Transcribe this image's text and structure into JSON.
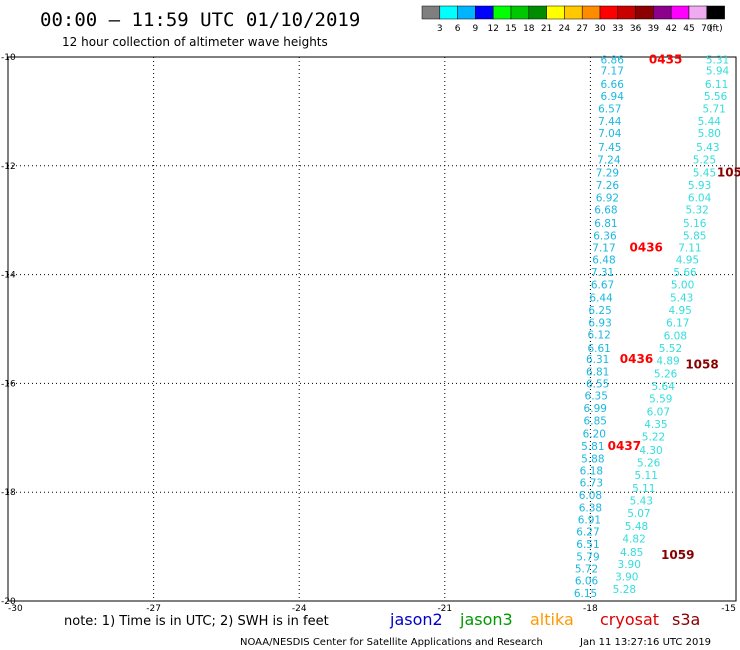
{
  "title": "00:00 – 11:59 UTC 01/10/2019",
  "subtitle": "12 hour collection of altimeter wave heights",
  "note": "note: 1) Time is in UTC; 2) SWH is in feet",
  "credit": "NOAA/NESDIS Center for Satellite Applications and Research",
  "timestamp": "Jan 11 13:27:16 UTC 2019",
  "colorbar": {
    "labels": [
      "3",
      "6",
      "9",
      "12",
      "15",
      "18",
      "21",
      "24",
      "27",
      "30",
      "33",
      "36",
      "39",
      "42",
      "45",
      "70"
    ],
    "colors": [
      "#7f7f7f",
      "#00ffff",
      "#00b4ff",
      "#0000ff",
      "#00ff00",
      "#00c800",
      "#008c00",
      "#ffff00",
      "#ffc800",
      "#ff8c00",
      "#ff0000",
      "#c80000",
      "#8c0000",
      "#8c008c",
      "#ff00ff",
      "#f0aaf0",
      "#000000"
    ],
    "unit": "(ft)"
  },
  "legend": [
    {
      "name": "jason2",
      "color": "#0000cc"
    },
    {
      "name": "jason3",
      "color": "#009900"
    },
    {
      "name": "altika",
      "color": "#ff9900"
    },
    {
      "name": "cryosat",
      "color": "#dd0000"
    },
    {
      "name": "s3a",
      "color": "#880000"
    }
  ],
  "chart_data": {
    "type": "scatter",
    "xlim": [
      -30,
      -15
    ],
    "ylim": [
      -20,
      -10
    ],
    "xticks": [
      -30,
      -27,
      -24,
      -21,
      -18,
      -15
    ],
    "yticks": [
      -10,
      -12,
      -14,
      -16,
      -18,
      -20
    ],
    "xtick_labels": [
      "-30",
      "-27",
      "-24",
      "-21",
      "-18",
      "-15"
    ],
    "ytick_labels": [
      "-10",
      "-12",
      "-14",
      "-16",
      "-18",
      "-20"
    ],
    "grid": true,
    "series": [
      {
        "color": "#1ab8e0",
        "points": [
          {
            "x": -17.55,
            "y": -10.05,
            "label": "6.86"
          },
          {
            "x": -17.55,
            "y": -10.25,
            "label": "7.17"
          },
          {
            "x": -17.55,
            "y": -10.5,
            "label": "6.66"
          },
          {
            "x": -17.55,
            "y": -10.72,
            "label": "6.94"
          },
          {
            "x": -17.6,
            "y": -10.95,
            "label": "6.57"
          },
          {
            "x": -17.6,
            "y": -11.18,
            "label": "7.44"
          },
          {
            "x": -17.6,
            "y": -11.4,
            "label": "7.04"
          },
          {
            "x": -17.6,
            "y": -11.65,
            "label": "7.45"
          },
          {
            "x": -17.62,
            "y": -11.88,
            "label": "7.24"
          },
          {
            "x": -17.65,
            "y": -12.12,
            "label": "7.29"
          },
          {
            "x": -17.65,
            "y": -12.35,
            "label": "7.26"
          },
          {
            "x": -17.65,
            "y": -12.58,
            "label": "6.92"
          },
          {
            "x": -17.68,
            "y": -12.8,
            "label": "6.68"
          },
          {
            "x": -17.68,
            "y": -13.05,
            "label": "6.81"
          },
          {
            "x": -17.7,
            "y": -13.28,
            "label": "6.36"
          },
          {
            "x": -17.72,
            "y": -13.5,
            "label": "7.17"
          },
          {
            "x": -17.72,
            "y": -13.72,
            "label": "6.48"
          },
          {
            "x": -17.75,
            "y": -13.95,
            "label": "7.31"
          },
          {
            "x": -17.75,
            "y": -14.18,
            "label": "6.67"
          },
          {
            "x": -17.78,
            "y": -14.42,
            "label": "6.44"
          },
          {
            "x": -17.8,
            "y": -14.65,
            "label": "6.25"
          },
          {
            "x": -17.8,
            "y": -14.88,
            "label": "6.93"
          },
          {
            "x": -17.82,
            "y": -15.1,
            "label": "6.12"
          },
          {
            "x": -17.82,
            "y": -15.35,
            "label": "6.61"
          },
          {
            "x": -17.85,
            "y": -15.55,
            "label": "6.31"
          },
          {
            "x": -17.85,
            "y": -15.78,
            "label": "6.81"
          },
          {
            "x": -17.85,
            "y": -16.0,
            "label": "6.55"
          },
          {
            "x": -17.88,
            "y": -16.22,
            "label": "6.35"
          },
          {
            "x": -17.9,
            "y": -16.45,
            "label": "6.99"
          },
          {
            "x": -17.9,
            "y": -16.68,
            "label": "6.85"
          },
          {
            "x": -17.92,
            "y": -16.92,
            "label": "6.20"
          },
          {
            "x": -17.95,
            "y": -17.15,
            "label": "5.81"
          },
          {
            "x": -17.95,
            "y": -17.38,
            "label": "5.88"
          },
          {
            "x": -17.98,
            "y": -17.6,
            "label": "6.18"
          },
          {
            "x": -17.98,
            "y": -17.82,
            "label": "6.73"
          },
          {
            "x": -18.0,
            "y": -18.05,
            "label": "6.08"
          },
          {
            "x": -18.0,
            "y": -18.28,
            "label": "6.38"
          },
          {
            "x": -18.02,
            "y": -18.5,
            "label": "6.91"
          },
          {
            "x": -18.05,
            "y": -18.72,
            "label": "6.27"
          },
          {
            "x": -18.05,
            "y": -18.95,
            "label": "6.51"
          },
          {
            "x": -18.05,
            "y": -19.18,
            "label": "5.79"
          },
          {
            "x": -18.08,
            "y": -19.4,
            "label": "5.72"
          },
          {
            "x": -18.08,
            "y": -19.62,
            "label": "6.06"
          },
          {
            "x": -18.1,
            "y": -19.85,
            "label": "6.15"
          }
        ]
      },
      {
        "color": "#33dddd",
        "points": [
          {
            "x": -15.38,
            "y": -10.05,
            "label": "5.31"
          },
          {
            "x": -15.38,
            "y": -10.25,
            "label": "5.94"
          },
          {
            "x": -15.4,
            "y": -10.5,
            "label": "6.11"
          },
          {
            "x": -15.42,
            "y": -10.72,
            "label": "5.56"
          },
          {
            "x": -15.45,
            "y": -10.95,
            "label": "5.71"
          },
          {
            "x": -15.55,
            "y": -11.18,
            "label": "5.44"
          },
          {
            "x": -15.55,
            "y": -11.4,
            "label": "5.80"
          },
          {
            "x": -15.58,
            "y": -11.65,
            "label": "5.43"
          },
          {
            "x": -15.65,
            "y": -11.88,
            "label": "5.25"
          },
          {
            "x": -15.65,
            "y": -12.12,
            "label": "5.45"
          },
          {
            "x": -15.75,
            "y": -12.35,
            "label": "5.93"
          },
          {
            "x": -15.75,
            "y": -12.58,
            "label": "6.04"
          },
          {
            "x": -15.8,
            "y": -12.8,
            "label": "5.32"
          },
          {
            "x": -15.85,
            "y": -13.05,
            "label": "5.16"
          },
          {
            "x": -15.85,
            "y": -13.28,
            "label": "5.85"
          },
          {
            "x": -15.95,
            "y": -13.5,
            "label": "7.11"
          },
          {
            "x": -16.0,
            "y": -13.72,
            "label": "4.95"
          },
          {
            "x": -16.05,
            "y": -13.95,
            "label": "5.66"
          },
          {
            "x": -16.1,
            "y": -14.18,
            "label": "5.00"
          },
          {
            "x": -16.12,
            "y": -14.42,
            "label": "5.43"
          },
          {
            "x": -16.15,
            "y": -14.65,
            "label": "4.95"
          },
          {
            "x": -16.2,
            "y": -14.88,
            "label": "6.17"
          },
          {
            "x": -16.25,
            "y": -15.12,
            "label": "6.08"
          },
          {
            "x": -16.35,
            "y": -15.35,
            "label": "5.52"
          },
          {
            "x": -16.4,
            "y": -15.58,
            "label": "4.89"
          },
          {
            "x": -16.45,
            "y": -15.82,
            "label": "5.26"
          },
          {
            "x": -16.5,
            "y": -16.05,
            "label": "5.64"
          },
          {
            "x": -16.55,
            "y": -16.28,
            "label": "5.59"
          },
          {
            "x": -16.6,
            "y": -16.52,
            "label": "6.07"
          },
          {
            "x": -16.65,
            "y": -16.75,
            "label": "4.35"
          },
          {
            "x": -16.7,
            "y": -16.98,
            "label": "5.22"
          },
          {
            "x": -16.75,
            "y": -17.22,
            "label": "4.30"
          },
          {
            "x": -16.8,
            "y": -17.45,
            "label": "5.26"
          },
          {
            "x": -16.85,
            "y": -17.68,
            "label": "5.11"
          },
          {
            "x": -16.9,
            "y": -17.92,
            "label": "5.11"
          },
          {
            "x": -16.95,
            "y": -18.15,
            "label": "5.43"
          },
          {
            "x": -17.0,
            "y": -18.38,
            "label": "5.07"
          },
          {
            "x": -17.05,
            "y": -18.62,
            "label": "5.48"
          },
          {
            "x": -17.1,
            "y": -18.85,
            "label": "4.82"
          },
          {
            "x": -17.15,
            "y": -19.1,
            "label": "4.85"
          },
          {
            "x": -17.2,
            "y": -19.32,
            "label": "3.90"
          },
          {
            "x": -17.25,
            "y": -19.55,
            "label": "3.90"
          },
          {
            "x": -17.3,
            "y": -19.78,
            "label": "5.28"
          }
        ]
      }
    ],
    "time_labels": [
      {
        "x": -16.45,
        "y": -10.05,
        "label": "0435",
        "color": "#ff0000"
      },
      {
        "x": -16.85,
        "y": -13.5,
        "label": "0436",
        "color": "#ff0000"
      },
      {
        "x": -17.05,
        "y": -15.55,
        "label": "0436",
        "color": "#ff0000"
      },
      {
        "x": -17.3,
        "y": -17.15,
        "label": "0437",
        "color": "#ff0000"
      },
      {
        "x": -15.05,
        "y": -12.12,
        "label": "1057",
        "color": "#880000"
      },
      {
        "x": -15.7,
        "y": -15.65,
        "label": "1058",
        "color": "#880000"
      },
      {
        "x": -16.2,
        "y": -19.15,
        "label": "1059",
        "color": "#880000"
      }
    ]
  }
}
